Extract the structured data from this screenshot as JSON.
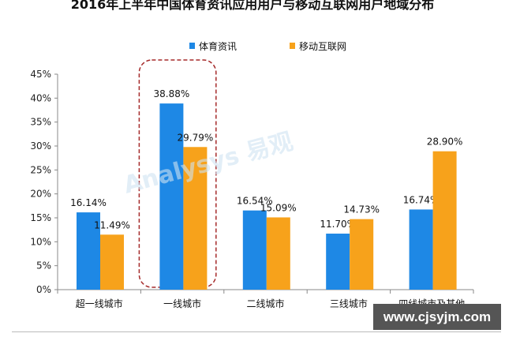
{
  "chart_data": {
    "type": "bar",
    "title": "2016年上半年中国体育资讯应用用户与移动互联网用户地域分布",
    "categories": [
      "超一线城市",
      "一线城市",
      "二线城市",
      "三线城市",
      "四线城市及其他"
    ],
    "series": [
      {
        "name": "体育资讯",
        "color": "#1E88E5",
        "values": [
          16.14,
          38.88,
          16.54,
          11.7,
          16.74
        ]
      },
      {
        "name": "移动互联网",
        "color": "#F7A21B",
        "values": [
          11.49,
          29.79,
          15.09,
          14.73,
          28.9
        ]
      }
    ],
    "ylim": [
      0,
      45
    ],
    "yticks": [
      "0%",
      "5%",
      "10%",
      "15%",
      "20%",
      "25%",
      "30%",
      "35%",
      "40%",
      "45%"
    ],
    "grid": false,
    "legend": "top",
    "highlight_category": "一线城市",
    "highlight_color": "#A52A2A"
  },
  "watermark": {
    "logo": "Analysys 易观 数据驱动用户资产成长",
    "url": "www.cjsyjm.com"
  }
}
